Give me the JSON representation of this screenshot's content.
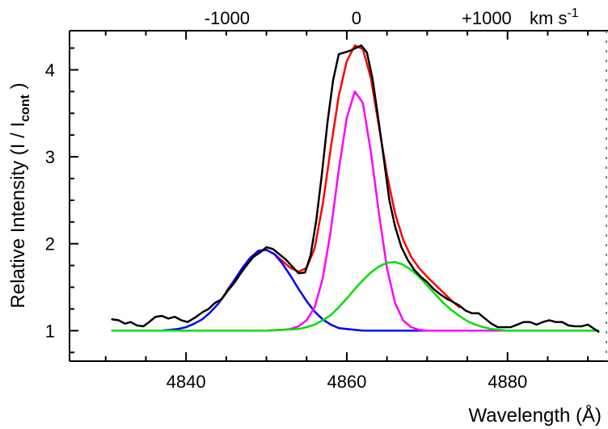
{
  "chart_data": {
    "type": "line",
    "xlabel": "Wavelength (Å)",
    "ylabel_main": "Relative Intensity (I / I",
    "ylabel_sub": "cont",
    "ylabel_close": " )",
    "x_ticks": [
      "4840",
      "4860",
      "4880"
    ],
    "x_tick_values": [
      4840,
      4860,
      4880
    ],
    "y_ticks": [
      "1",
      "2",
      "3",
      "4"
    ],
    "y_tick_values": [
      1,
      2,
      3,
      4
    ],
    "xlim": [
      4825.5,
      4892.5
    ],
    "ylim": [
      0.65,
      4.45
    ],
    "top_axis": {
      "ticks": [
        "-1000",
        "0",
        "+1000"
      ],
      "tick_values": [
        4845.1,
        4861.2,
        4877.4
      ],
      "unit_main": "km s",
      "unit_sup": "-1"
    },
    "series": [
      {
        "key": "observed",
        "color": "#000000",
        "x": [
          4830.8,
          4831.6,
          4832.4,
          4833.1,
          4833.9,
          4834.7,
          4835.4,
          4836.2,
          4837.0,
          4837.8,
          4838.6,
          4839.4,
          4840.2,
          4841.1,
          4842.0,
          4842.8,
          4843.6,
          4844.4,
          4845.2,
          4846.0,
          4846.8,
          4847.6,
          4848.4,
          4849.2,
          4850.0,
          4850.8,
          4851.6,
          4852.4,
          4853.2,
          4854.0,
          4854.8,
          4855.5,
          4856.2,
          4856.9,
          4857.6,
          4858.3,
          4859.0,
          4859.7,
          4860.4,
          4861.1,
          4861.8,
          4862.5,
          4863.2,
          4863.9,
          4864.6,
          4865.3,
          4866.0,
          4866.8,
          4867.6,
          4868.4,
          4869.2,
          4870.0,
          4870.8,
          4871.6,
          4872.4,
          4873.2,
          4874.0,
          4874.8,
          4875.6,
          4876.4,
          4877.2,
          4878.0,
          4878.8,
          4879.6,
          4880.4,
          4881.2,
          4882.0,
          4882.8,
          4883.6,
          4884.4,
          4885.2,
          4886.0,
          4886.8,
          4887.6,
          4888.4,
          4889.2,
          4890.0,
          4890.8,
          4891.3
        ],
        "y": [
          1.13,
          1.12,
          1.08,
          1.1,
          1.06,
          1.05,
          1.1,
          1.16,
          1.17,
          1.14,
          1.16,
          1.12,
          1.1,
          1.15,
          1.21,
          1.25,
          1.32,
          1.36,
          1.46,
          1.55,
          1.66,
          1.76,
          1.85,
          1.9,
          1.96,
          1.94,
          1.88,
          1.82,
          1.74,
          1.66,
          1.67,
          1.87,
          2.27,
          2.8,
          3.4,
          3.88,
          4.18,
          4.2,
          4.22,
          4.25,
          4.28,
          4.2,
          3.9,
          3.45,
          2.98,
          2.5,
          2.2,
          1.96,
          1.81,
          1.7,
          1.62,
          1.56,
          1.48,
          1.42,
          1.37,
          1.33,
          1.29,
          1.23,
          1.2,
          1.2,
          1.14,
          1.08,
          1.04,
          1.04,
          1.04,
          1.07,
          1.1,
          1.1,
          1.07,
          1.1,
          1.12,
          1.1,
          1.1,
          1.06,
          1.05,
          1.05,
          1.07,
          1.02,
          0.99
        ]
      },
      {
        "key": "total-fit",
        "color": "#ff0000",
        "x": [
          4845.0,
          4846.0,
          4847.0,
          4848.0,
          4849.0,
          4850.0,
          4851.0,
          4852.0,
          4853.0,
          4854.0,
          4855.0,
          4856.0,
          4857.0,
          4858.0,
          4859.0,
          4860.0,
          4861.0,
          4862.0,
          4863.0,
          4864.0,
          4865.0,
          4866.0,
          4867.0,
          4868.0,
          4869.0,
          4870.0,
          4871.0,
          4872.0,
          4873.0,
          4874.0
        ],
        "y": [
          1.45,
          1.58,
          1.72,
          1.84,
          1.91,
          1.93,
          1.88,
          1.8,
          1.72,
          1.68,
          1.72,
          1.95,
          2.45,
          3.1,
          3.7,
          4.1,
          4.28,
          4.24,
          3.9,
          3.35,
          2.8,
          2.35,
          2.05,
          1.85,
          1.72,
          1.62,
          1.53,
          1.44,
          1.35,
          1.27
        ]
      },
      {
        "key": "blue-component",
        "color": "#0000ff",
        "x": [
          4836.8,
          4838.0,
          4839.0,
          4840.0,
          4841.0,
          4842.0,
          4843.0,
          4844.0,
          4845.0,
          4846.0,
          4847.0,
          4848.0,
          4849.0,
          4850.0,
          4851.0,
          4852.0,
          4853.0,
          4854.0,
          4855.0,
          4856.0,
          4857.0,
          4858.0,
          4859.0,
          4860.0,
          4861.0,
          4862.0,
          4863.0,
          4864.0,
          4865.0,
          4866.0,
          4867.0,
          4868.0,
          4869.0,
          4870.0
        ],
        "y": [
          1.0,
          1.01,
          1.02,
          1.04,
          1.08,
          1.13,
          1.21,
          1.31,
          1.44,
          1.58,
          1.72,
          1.84,
          1.92,
          1.93,
          1.88,
          1.77,
          1.63,
          1.48,
          1.34,
          1.22,
          1.13,
          1.07,
          1.03,
          1.02,
          1.01,
          1.0,
          1.0,
          1.0,
          1.0,
          1.0,
          1.0,
          1.0,
          1.0,
          1.0
        ]
      },
      {
        "key": "magenta-component",
        "color": "#ff00ff",
        "x": [
          4848.0,
          4850.0,
          4852.0,
          4853.0,
          4854.0,
          4855.0,
          4856.0,
          4857.0,
          4858.0,
          4859.0,
          4860.0,
          4861.0,
          4862.0,
          4863.0,
          4864.0,
          4865.0,
          4866.0,
          4867.0,
          4868.0,
          4869.0,
          4870.0,
          4872.0,
          4875.0,
          4878.0,
          4880.0
        ],
        "y": [
          1.0,
          1.0,
          1.01,
          1.02,
          1.05,
          1.12,
          1.27,
          1.6,
          2.15,
          2.85,
          3.45,
          3.75,
          3.62,
          3.05,
          2.35,
          1.72,
          1.32,
          1.12,
          1.04,
          1.01,
          1.0,
          1.0,
          1.0,
          1.0,
          1.0
        ]
      },
      {
        "key": "green-component",
        "color": "#00e000",
        "x": [
          4830.8,
          4836.0,
          4840.0,
          4844.0,
          4848.0,
          4850.0,
          4852.0,
          4854.0,
          4855.0,
          4856.0,
          4857.0,
          4858.0,
          4859.0,
          4860.0,
          4861.0,
          4862.0,
          4863.0,
          4864.0,
          4865.0,
          4866.0,
          4867.0,
          4868.0,
          4869.0,
          4870.0,
          4871.0,
          4872.0,
          4873.0,
          4874.0,
          4875.0,
          4876.0,
          4877.0,
          4878.0,
          4879.0,
          4880.0,
          4884.0,
          4888.0,
          4891.3
        ],
        "y": [
          1.0,
          1.0,
          1.0,
          1.0,
          1.0,
          1.0,
          1.01,
          1.02,
          1.04,
          1.07,
          1.12,
          1.18,
          1.27,
          1.37,
          1.48,
          1.58,
          1.67,
          1.74,
          1.78,
          1.79,
          1.76,
          1.7,
          1.62,
          1.52,
          1.42,
          1.32,
          1.24,
          1.17,
          1.11,
          1.07,
          1.04,
          1.02,
          1.01,
          1.0,
          1.0,
          1.0,
          1.0
        ]
      }
    ]
  }
}
